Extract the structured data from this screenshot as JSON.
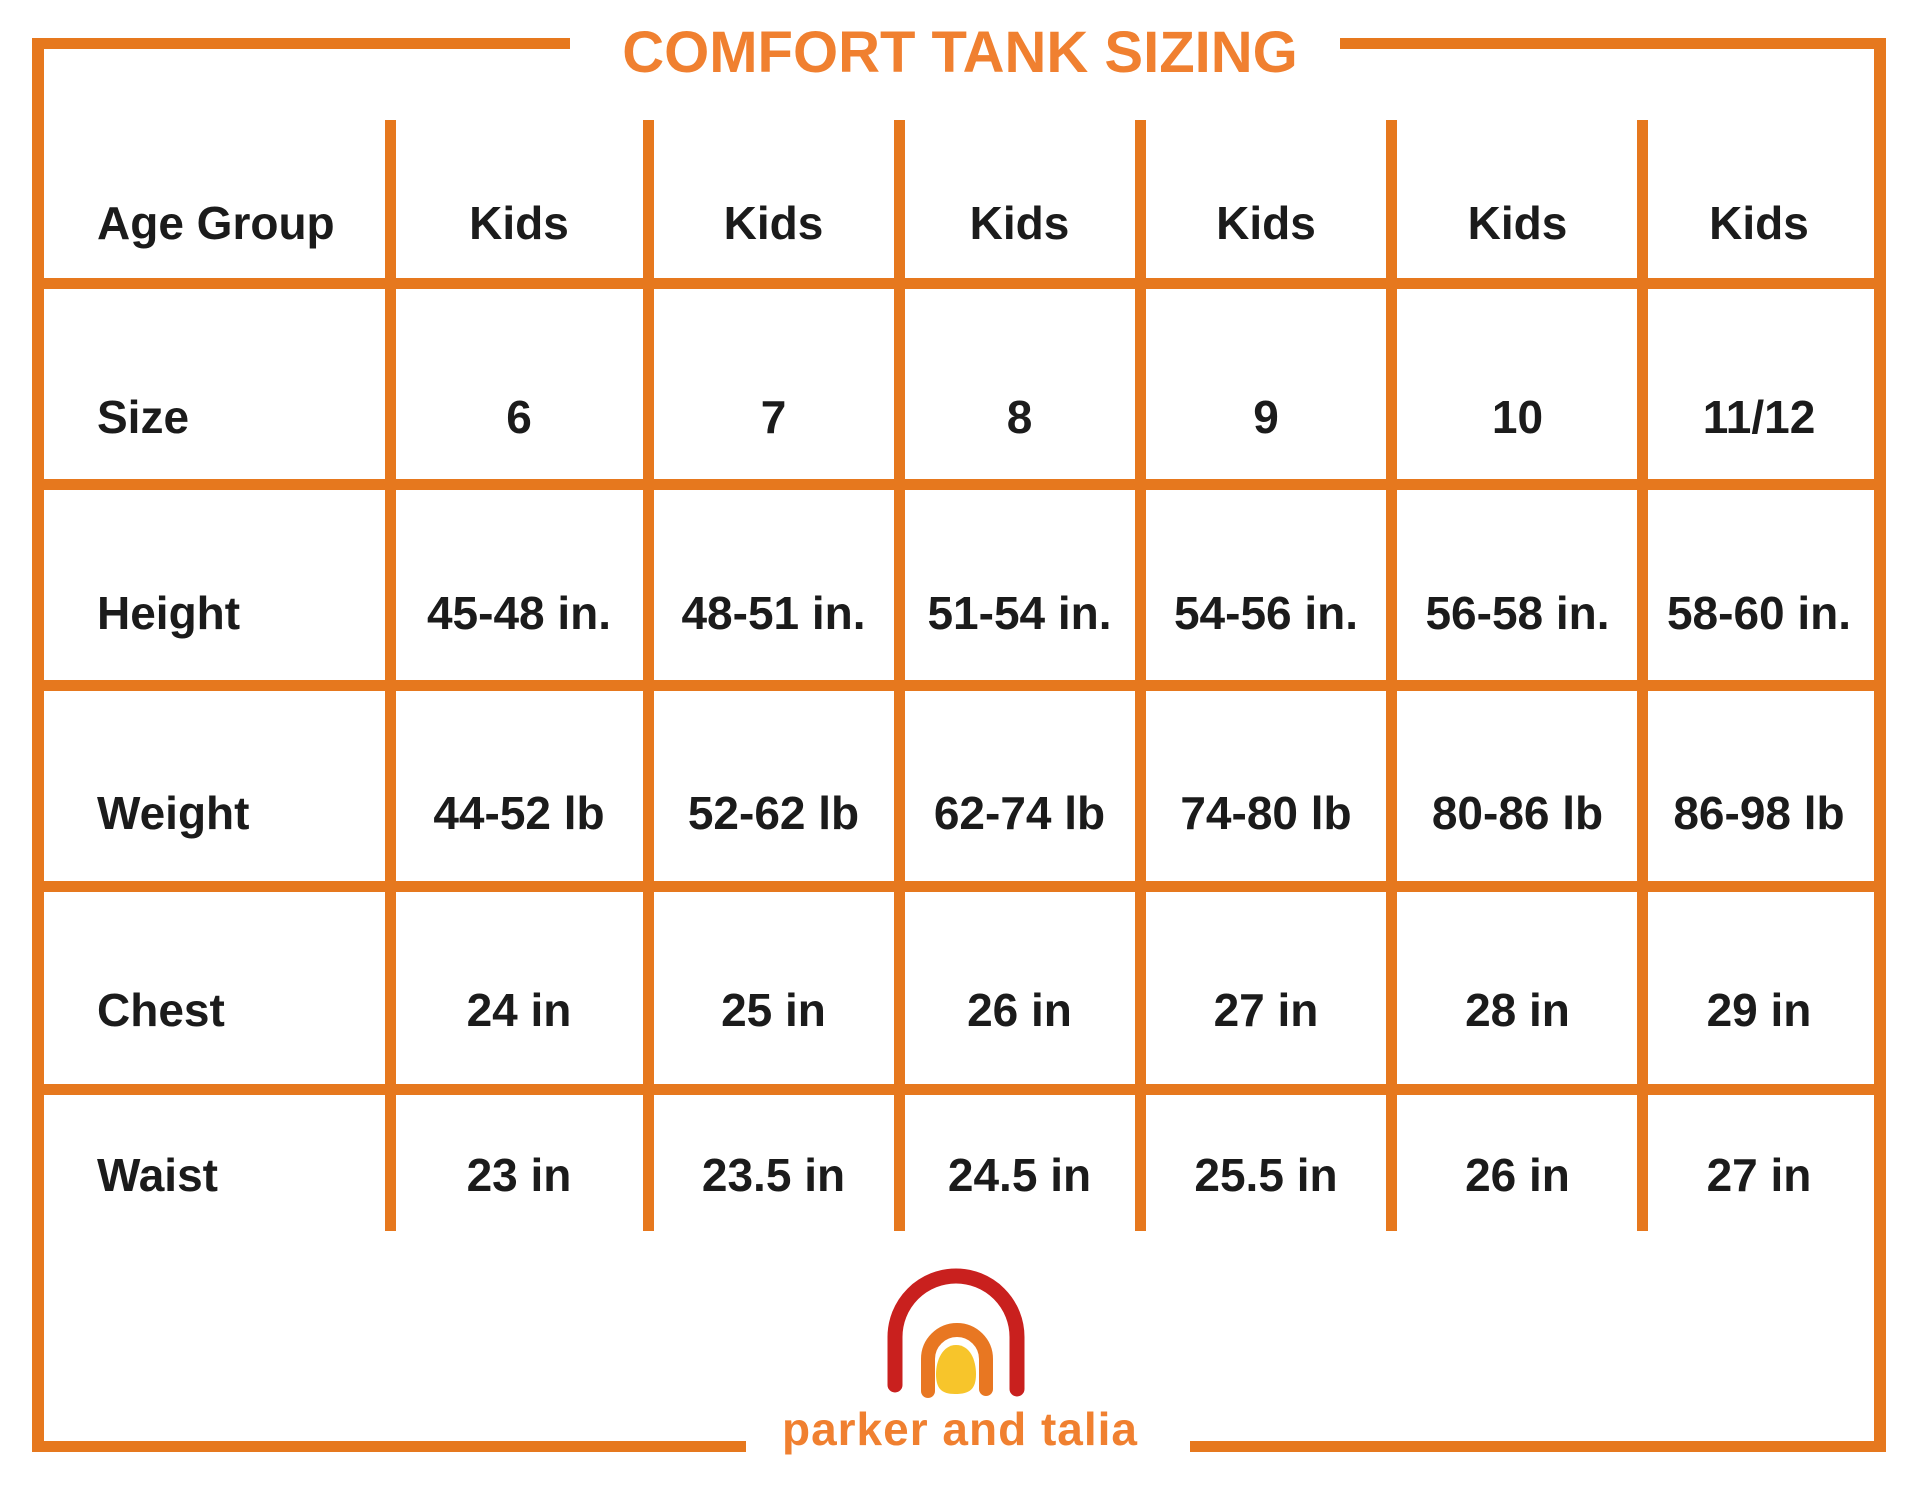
{
  "chart_data": {
    "type": "table",
    "title": "COMFORT TANK SIZING",
    "columns": [
      "Age Group",
      "Kids",
      "Kids",
      "Kids",
      "Kids",
      "Kids",
      "Kids"
    ],
    "rows": [
      [
        "Size",
        "6",
        "7",
        "8",
        "9",
        "10",
        "11/12"
      ],
      [
        "Height",
        "45-48 in.",
        "48-51 in.",
        "51-54 in.",
        "54-56 in.",
        "56-58 in.",
        "58-60 in."
      ],
      [
        "Weight",
        "44-52 lb",
        "52-62 lb",
        "62-74 lb",
        "74-80 lb",
        "80-86 lb",
        "86-98 lb"
      ],
      [
        "Chest",
        "24 in",
        "25 in",
        "26 in",
        "27 in",
        "28 in",
        "29 in"
      ],
      [
        "Waist",
        "23 in",
        "23.5 in",
        "24.5 in",
        "25.5 in",
        "26 in",
        "27 in"
      ]
    ],
    "layout": {
      "grid": "on",
      "header_position": "top-row",
      "label_column": "left"
    }
  },
  "footer": {
    "brand": "parker and talia",
    "logo_icon": "rainbow-icon"
  },
  "colors": {
    "grid": "#e6781e",
    "accent": "#f08030",
    "ink": "#1b1b1b",
    "logo_red": "#c9201e",
    "logo_orange": "#e87722",
    "logo_yellow": "#f7c52b",
    "background": "#ffffff"
  }
}
